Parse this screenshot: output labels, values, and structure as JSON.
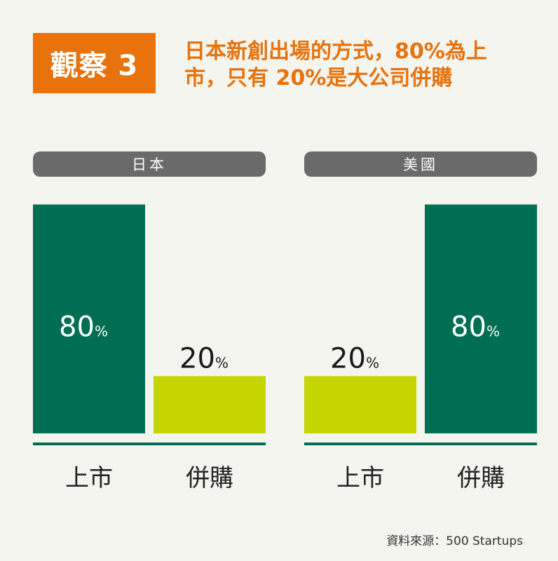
{
  "header": {
    "badge": "觀察 3",
    "title_line1": "日本新創出場的方式，80%為上",
    "title_line2": "市，只有 20%是大公司併購"
  },
  "source": "資料來源：500 Startups",
  "colors": {
    "accent": "#e8720c",
    "bar_dark": "#006e52",
    "bar_light": "#c5d500",
    "panel_label_bg": "#6a6a6a",
    "background": "#f4f5ef"
  },
  "chart_data": [
    {
      "type": "bar",
      "title": "日本",
      "categories": [
        "上市",
        "併購"
      ],
      "values": [
        80,
        20
      ],
      "value_labels": [
        "80%",
        "20%"
      ],
      "ylim": [
        0,
        100
      ]
    },
    {
      "type": "bar",
      "title": "美國",
      "categories": [
        "上市",
        "併購"
      ],
      "values": [
        20,
        80
      ],
      "value_labels": [
        "20%",
        "80%"
      ],
      "ylim": [
        0,
        100
      ]
    }
  ]
}
